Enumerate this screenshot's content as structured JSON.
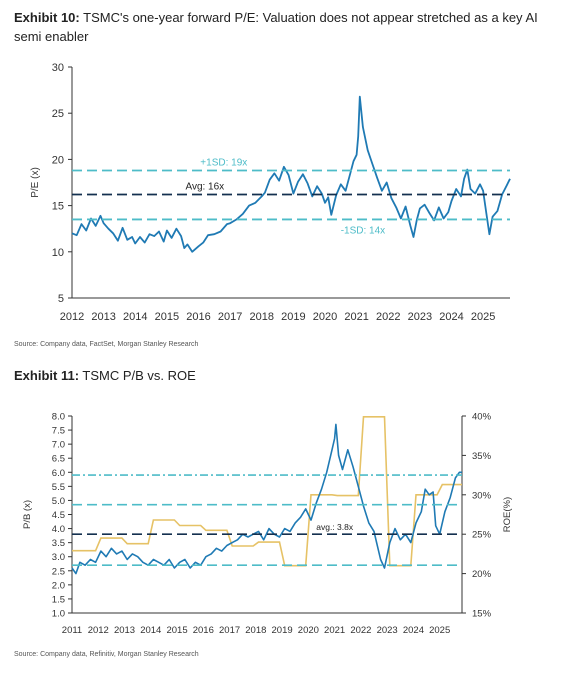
{
  "exhibit10": {
    "label": "Exhibit 10:",
    "title": "TSMC's one-year forward P/E: Valuation does not appear stretched as a key AI semi enabler",
    "source": "Source: Company data, FactSet, Morgan Stanley Research"
  },
  "exhibit11": {
    "label": "Exhibit 11:",
    "title": "TSMC P/B vs. ROE",
    "source": "Source: Company data, Refinitiv, Morgan Stanley Research"
  },
  "colors": {
    "pe_line": "#1f7ab4",
    "avg_line": "#14304f",
    "sd_line": "#4ebcc8",
    "roe_line": "#e6c266",
    "pb_line": "#1f7ab4",
    "text": "#333333"
  },
  "chart_data": [
    {
      "type": "line",
      "ylabel": "P/E (x)",
      "ylim": [
        5,
        30
      ],
      "yticks": [
        5,
        10,
        15,
        20,
        25,
        30
      ],
      "xlim": [
        2012,
        2025.85
      ],
      "xticks": [
        "2012",
        "2013",
        "2014",
        "2015",
        "2016",
        "2017",
        "2018",
        "2019",
        "2020",
        "2021",
        "2022",
        "2023",
        "2024",
        "2025"
      ],
      "reference_lines": [
        {
          "name": "+1SD: 19x",
          "value": 18.8,
          "style": "dashed",
          "color": "#4ebcc8"
        },
        {
          "name": "Avg: 16x",
          "value": 16.2,
          "style": "dashed",
          "color": "#14304f"
        },
        {
          "name": "-1SD: 14x",
          "value": 13.5,
          "style": "dashed",
          "color": "#4ebcc8"
        }
      ],
      "series": [
        {
          "x": [
            2012.0,
            2012.15,
            2012.3,
            2012.45,
            2012.6,
            2012.75,
            2012.9,
            2013.0,
            2013.15,
            2013.3,
            2013.45,
            2013.6,
            2013.75,
            2013.9,
            2014.0,
            2014.15,
            2014.3,
            2014.45,
            2014.6,
            2014.75,
            2014.9,
            2015.0,
            2015.15,
            2015.3,
            2015.45,
            2015.55,
            2015.65,
            2015.8,
            2016.0,
            2016.15,
            2016.3,
            2016.5,
            2016.7,
            2016.9,
            2017.0,
            2017.2,
            2017.4,
            2017.6,
            2017.8,
            2018.0,
            2018.1,
            2018.25,
            2018.4,
            2018.55,
            2018.7,
            2018.85,
            2019.0,
            2019.15,
            2019.3,
            2019.45,
            2019.6,
            2019.75,
            2019.9,
            2020.0,
            2020.1,
            2020.2,
            2020.35,
            2020.5,
            2020.65,
            2020.8,
            2020.9,
            2021.0,
            2021.05,
            2021.1,
            2021.2,
            2021.35,
            2021.5,
            2021.65,
            2021.8,
            2021.95,
            2022.1,
            2022.25,
            2022.4,
            2022.55,
            2022.7,
            2022.8,
            2022.9,
            2023.0,
            2023.15,
            2023.3,
            2023.45,
            2023.6,
            2023.75,
            2023.9,
            2024.0,
            2024.15,
            2024.3,
            2024.4,
            2024.5,
            2024.6,
            2024.75,
            2024.9,
            2025.0,
            2025.1,
            2025.2,
            2025.3,
            2025.45,
            2025.6,
            2025.75,
            2025.85
          ],
          "y": [
            12.0,
            11.8,
            13.0,
            12.3,
            13.6,
            12.8,
            13.9,
            13.1,
            12.5,
            12.0,
            11.2,
            12.6,
            11.3,
            11.6,
            10.9,
            11.6,
            11.0,
            11.9,
            11.7,
            12.2,
            11.1,
            12.3,
            11.5,
            12.5,
            11.7,
            10.4,
            10.8,
            10.0,
            10.6,
            11.0,
            11.8,
            11.9,
            12.2,
            13.0,
            13.1,
            13.5,
            14.1,
            15.0,
            15.3,
            16.0,
            16.4,
            17.8,
            18.5,
            17.7,
            19.2,
            18.3,
            16.3,
            17.6,
            18.4,
            17.4,
            16.0,
            17.1,
            16.3,
            15.3,
            15.9,
            14.0,
            16.1,
            17.3,
            16.6,
            18.5,
            19.8,
            20.5,
            22.5,
            26.8,
            23.5,
            21.0,
            19.5,
            18.0,
            16.6,
            17.5,
            15.8,
            14.8,
            13.6,
            14.9,
            12.8,
            11.6,
            13.4,
            14.7,
            15.1,
            14.2,
            13.4,
            14.8,
            13.6,
            14.3,
            15.5,
            16.8,
            16.0,
            17.9,
            18.9,
            16.8,
            16.3,
            17.3,
            16.6,
            14.2,
            11.9,
            13.8,
            14.4,
            16.2,
            17.2,
            17.9
          ]
        }
      ]
    },
    {
      "type": "line",
      "ylabel": "P/B (x)",
      "y2label": "ROE(%)",
      "ylim": [
        1.0,
        8.0
      ],
      "yticks": [
        "1.0",
        "1.5",
        "2.0",
        "2.5",
        "3.0",
        "3.5",
        "4.0",
        "4.5",
        "5.0",
        "5.5",
        "6.0",
        "6.5",
        "7.0",
        "7.5",
        "8.0"
      ],
      "y2lim": [
        15,
        40
      ],
      "y2ticks": [
        "15%",
        "20%",
        "25%",
        "30%",
        "35%",
        "40%"
      ],
      "xlim": [
        2011,
        2025.85
      ],
      "xticks": [
        "2011",
        "2012",
        "2013",
        "2014",
        "2015",
        "2016",
        "2017",
        "2018",
        "2019",
        "2020",
        "2021",
        "2022",
        "2023",
        "2024",
        "2025"
      ],
      "reference_lines": [
        {
          "value": 5.9,
          "style": "dash-dot",
          "color": "#4ebcc8"
        },
        {
          "value": 4.85,
          "style": "dashed",
          "color": "#4ebcc8"
        },
        {
          "name": "avg.: 3.8x",
          "value": 3.8,
          "style": "dashed",
          "color": "#14304f"
        },
        {
          "value": 2.7,
          "style": "dashed",
          "color": "#4ebcc8"
        }
      ],
      "series": [
        {
          "name": "P/B",
          "axis": "left",
          "x": [
            2011.0,
            2011.15,
            2011.3,
            2011.5,
            2011.7,
            2011.9,
            2012.1,
            2012.3,
            2012.5,
            2012.7,
            2012.9,
            2013.1,
            2013.3,
            2013.5,
            2013.7,
            2013.9,
            2014.1,
            2014.3,
            2014.5,
            2014.7,
            2014.9,
            2015.1,
            2015.3,
            2015.5,
            2015.7,
            2015.9,
            2016.1,
            2016.3,
            2016.5,
            2016.7,
            2016.9,
            2017.1,
            2017.3,
            2017.5,
            2017.7,
            2017.9,
            2018.1,
            2018.3,
            2018.5,
            2018.7,
            2018.9,
            2019.1,
            2019.3,
            2019.5,
            2019.7,
            2019.9,
            2020.1,
            2020.3,
            2020.5,
            2020.7,
            2020.9,
            2021.0,
            2021.05,
            2021.15,
            2021.3,
            2021.5,
            2021.7,
            2021.9,
            2022.1,
            2022.3,
            2022.5,
            2022.6,
            2022.75,
            2022.9,
            2023.1,
            2023.3,
            2023.5,
            2023.7,
            2023.9,
            2024.1,
            2024.3,
            2024.45,
            2024.6,
            2024.75,
            2024.85,
            2025.0,
            2025.2,
            2025.4,
            2025.6,
            2025.75,
            2025.85
          ],
          "y": [
            2.6,
            2.4,
            2.8,
            2.7,
            2.9,
            2.8,
            3.2,
            3.0,
            3.3,
            3.1,
            3.2,
            2.9,
            3.1,
            3.0,
            2.8,
            2.7,
            2.9,
            2.8,
            2.7,
            2.9,
            2.6,
            2.8,
            2.9,
            2.6,
            2.8,
            2.7,
            3.0,
            3.1,
            3.3,
            3.2,
            3.4,
            3.5,
            3.6,
            3.8,
            3.7,
            3.8,
            3.9,
            3.6,
            4.0,
            3.8,
            3.7,
            4.0,
            3.9,
            4.2,
            4.4,
            4.7,
            4.3,
            4.9,
            5.4,
            6.0,
            6.8,
            7.2,
            7.7,
            6.6,
            6.1,
            6.8,
            6.2,
            5.5,
            4.8,
            4.2,
            3.9,
            3.5,
            2.9,
            2.6,
            3.5,
            4.0,
            3.6,
            3.8,
            3.5,
            4.2,
            4.6,
            5.4,
            5.2,
            5.3,
            4.1,
            3.8,
            4.6,
            5.1,
            5.8,
            6.0,
            6.0
          ]
        },
        {
          "name": "ROE",
          "axis": "right",
          "x": [
            2011.0,
            2011.9,
            2012.1,
            2012.9,
            2013.1,
            2013.9,
            2014.1,
            2014.9,
            2015.1,
            2015.9,
            2016.1,
            2016.9,
            2017.1,
            2017.9,
            2018.1,
            2018.9,
            2019.1,
            2019.9,
            2020.1,
            2020.9,
            2021.1,
            2021.9,
            2022.1,
            2022.9,
            2023.1,
            2023.9,
            2024.1,
            2024.9,
            2025.1,
            2025.85
          ],
          "y": [
            22.9,
            22.9,
            24.5,
            24.5,
            23.8,
            23.8,
            26.8,
            26.8,
            26.1,
            26.1,
            25.5,
            25.5,
            23.5,
            23.5,
            24.0,
            24.0,
            21.0,
            21.0,
            30.0,
            30.0,
            29.9,
            29.9,
            39.9,
            39.9,
            21.0,
            21.0,
            30.0,
            30.0,
            31.3,
            31.3
          ]
        }
      ]
    }
  ]
}
